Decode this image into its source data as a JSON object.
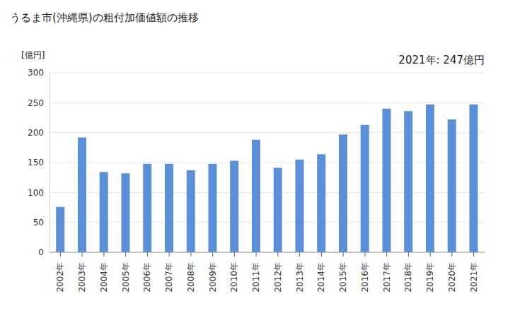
{
  "chart_data": {
    "type": "bar",
    "title": "うるま市(沖縄県)の粗付加価値額の推移",
    "y_label": "[億円]",
    "annotation": "2021年: 247億円",
    "categories": [
      "2002年",
      "2003年",
      "2004年",
      "2005年",
      "2006年",
      "2007年",
      "2008年",
      "2009年",
      "2010年",
      "2011年",
      "2012年",
      "2013年",
      "2014年",
      "2015年",
      "2016年",
      "2017年",
      "2018年",
      "2019年",
      "2020年",
      "2021年"
    ],
    "values": [
      76,
      192,
      134,
      132,
      148,
      148,
      137,
      148,
      153,
      188,
      141,
      155,
      164,
      197,
      213,
      240,
      236,
      247,
      222,
      247
    ],
    "color": "#5b8fd8",
    "ylim": [
      0,
      300
    ],
    "yticks": [
      0,
      50,
      100,
      150,
      200,
      250,
      300
    ],
    "grid": true
  }
}
